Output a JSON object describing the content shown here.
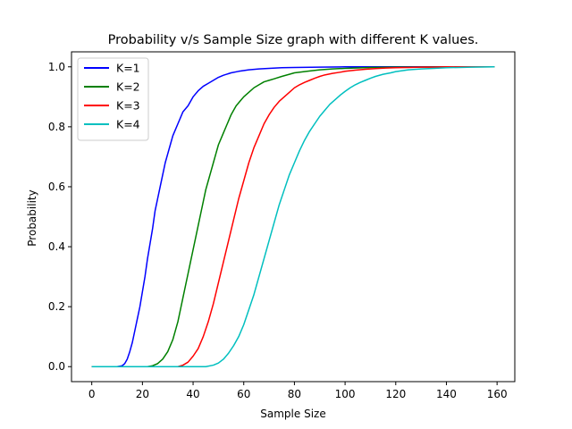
{
  "chart_data": {
    "type": "line",
    "title": "Probability v/s Sample Size graph with different K values.",
    "xlabel": "Sample Size",
    "ylabel": "Probability",
    "xlim": [
      -8,
      167
    ],
    "ylim": [
      -0.05,
      1.05
    ],
    "xticks": [
      0,
      20,
      40,
      60,
      80,
      100,
      120,
      140,
      160
    ],
    "yticks": [
      0.0,
      0.2,
      0.4,
      0.6,
      0.8,
      1.0
    ],
    "xtick_labels": [
      "0",
      "20",
      "40",
      "60",
      "80",
      "100",
      "120",
      "140",
      "160"
    ],
    "ytick_labels": [
      "0.0",
      "0.2",
      "0.4",
      "0.6",
      "0.8",
      "1.0"
    ],
    "grid": false,
    "legend_position": "top-left",
    "series": [
      {
        "name": "K=1",
        "color": "#0000ff",
        "x": [
          0,
          10,
          12,
          13,
          14,
          15,
          16,
          17,
          18,
          19,
          20,
          21,
          22,
          23,
          24,
          25,
          26,
          27,
          28,
          29,
          30,
          31,
          32,
          33,
          34,
          35,
          36,
          37,
          38,
          39,
          40,
          42,
          44,
          46,
          48,
          50,
          52,
          55,
          58,
          62,
          66,
          70,
          75,
          80,
          90,
          100,
          159
        ],
        "y": [
          0.0,
          0.0,
          0.003,
          0.01,
          0.025,
          0.05,
          0.08,
          0.12,
          0.16,
          0.2,
          0.25,
          0.3,
          0.36,
          0.41,
          0.46,
          0.52,
          0.56,
          0.6,
          0.64,
          0.68,
          0.71,
          0.74,
          0.77,
          0.79,
          0.81,
          0.83,
          0.85,
          0.86,
          0.87,
          0.885,
          0.9,
          0.92,
          0.935,
          0.945,
          0.955,
          0.965,
          0.972,
          0.98,
          0.985,
          0.99,
          0.993,
          0.995,
          0.997,
          0.998,
          0.999,
          1.0,
          1.0
        ]
      },
      {
        "name": "K=2",
        "color": "#008000",
        "x": [
          0,
          22,
          24,
          26,
          28,
          30,
          32,
          34,
          35,
          36,
          37,
          38,
          39,
          40,
          41,
          42,
          43,
          44,
          45,
          46,
          47,
          48,
          49,
          50,
          51,
          52,
          53,
          54,
          55,
          56,
          57,
          58,
          59,
          60,
          62,
          64,
          66,
          68,
          70,
          72,
          75,
          78,
          80,
          85,
          90,
          95,
          100,
          110,
          120,
          159
        ],
        "y": [
          0.0,
          0.0,
          0.003,
          0.01,
          0.025,
          0.05,
          0.09,
          0.15,
          0.19,
          0.23,
          0.27,
          0.31,
          0.35,
          0.39,
          0.43,
          0.47,
          0.51,
          0.55,
          0.59,
          0.62,
          0.65,
          0.68,
          0.71,
          0.74,
          0.76,
          0.78,
          0.8,
          0.82,
          0.84,
          0.855,
          0.87,
          0.88,
          0.89,
          0.9,
          0.915,
          0.93,
          0.94,
          0.95,
          0.955,
          0.96,
          0.968,
          0.975,
          0.98,
          0.985,
          0.99,
          0.993,
          0.995,
          0.998,
          0.999,
          1.0
        ]
      },
      {
        "name": "K=3",
        "color": "#ff0000",
        "x": [
          0,
          34,
          36,
          38,
          40,
          42,
          44,
          46,
          48,
          50,
          52,
          54,
          56,
          58,
          60,
          62,
          64,
          66,
          68,
          70,
          72,
          74,
          76,
          78,
          80,
          82,
          84,
          86,
          88,
          90,
          92,
          95,
          98,
          100,
          104,
          108,
          112,
          116,
          120,
          125,
          130,
          135,
          140,
          159
        ],
        "y": [
          0.0,
          0.0,
          0.005,
          0.015,
          0.035,
          0.06,
          0.1,
          0.15,
          0.21,
          0.28,
          0.35,
          0.42,
          0.49,
          0.56,
          0.62,
          0.68,
          0.73,
          0.77,
          0.81,
          0.84,
          0.865,
          0.885,
          0.9,
          0.915,
          0.93,
          0.94,
          0.948,
          0.955,
          0.962,
          0.968,
          0.973,
          0.978,
          0.982,
          0.985,
          0.989,
          0.992,
          0.994,
          0.996,
          0.997,
          0.998,
          0.999,
          0.999,
          1.0,
          1.0
        ]
      },
      {
        "name": "K=4",
        "color": "#00bfbf",
        "x": [
          0,
          45,
          48,
          50,
          52,
          54,
          56,
          58,
          60,
          62,
          64,
          66,
          68,
          70,
          72,
          74,
          76,
          78,
          80,
          82,
          84,
          86,
          88,
          90,
          92,
          94,
          96,
          98,
          100,
          102,
          104,
          106,
          108,
          110,
          112,
          115,
          118,
          120,
          125,
          130,
          135,
          140,
          145,
          150,
          159
        ],
        "y": [
          0.0,
          0.0,
          0.005,
          0.012,
          0.025,
          0.045,
          0.07,
          0.1,
          0.14,
          0.19,
          0.24,
          0.3,
          0.36,
          0.42,
          0.48,
          0.54,
          0.59,
          0.64,
          0.68,
          0.72,
          0.755,
          0.785,
          0.81,
          0.835,
          0.855,
          0.875,
          0.89,
          0.905,
          0.918,
          0.93,
          0.94,
          0.948,
          0.955,
          0.962,
          0.968,
          0.975,
          0.98,
          0.984,
          0.99,
          0.993,
          0.995,
          0.997,
          0.998,
          0.999,
          1.0
        ]
      }
    ]
  }
}
